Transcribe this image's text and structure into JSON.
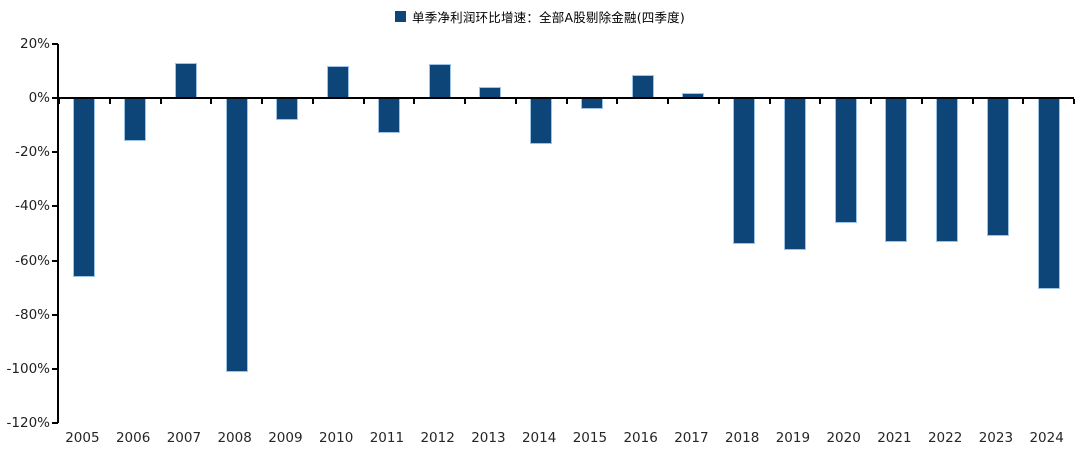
{
  "legend": {
    "label": "单季净利润环比增速：全部A股剔除金融(四季度)",
    "marker_color": "#0E4578"
  },
  "colors": {
    "bar_fill": "#0E4578",
    "bar_border": "#9DC3E6",
    "axis": "#000000",
    "tick_text": "#1f1f1f"
  },
  "chart_data": {
    "type": "bar",
    "title": "",
    "series_name": "单季净利润环比增速：全部A股剔除金融(四季度)",
    "categories": [
      "2005",
      "2006",
      "2007",
      "2008",
      "2009",
      "2010",
      "2011",
      "2012",
      "2013",
      "2014",
      "2015",
      "2016",
      "2017",
      "2018",
      "2019",
      "2020",
      "2021",
      "2022",
      "2023",
      "2024"
    ],
    "values": [
      -66,
      -16,
      13,
      -101,
      -8,
      12,
      -13,
      12.5,
      4,
      -17,
      -4,
      8.5,
      2,
      -54,
      -56,
      -46,
      -53,
      -53,
      -51,
      -70.5
    ],
    "value_unit": "%",
    "xlabel": "",
    "ylabel": "",
    "ylim": [
      -120,
      20
    ],
    "ytick_values": [
      20,
      0,
      -20,
      -40,
      -60,
      -80,
      -100,
      -120
    ],
    "ytick_labels": [
      "20%",
      "0%",
      "-20%",
      "-40%",
      "-60%",
      "-80%",
      "-100%",
      "-120%"
    ],
    "grid": false,
    "legend_position": "top-center"
  }
}
